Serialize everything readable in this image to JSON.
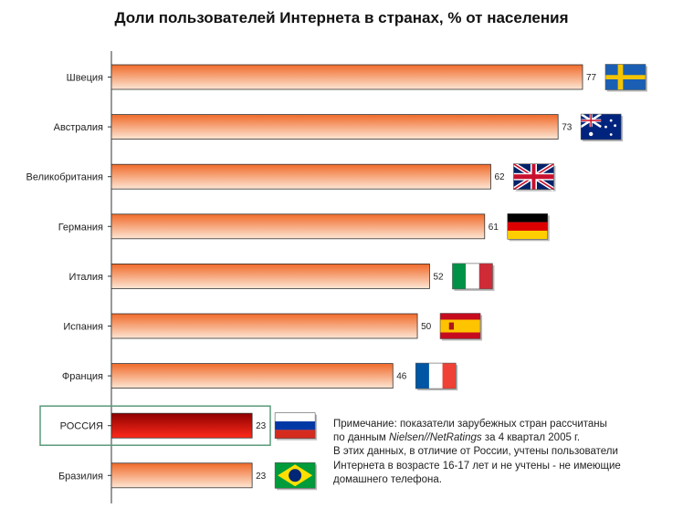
{
  "chart_data": {
    "type": "bar",
    "orientation": "horizontal",
    "title": "Доли пользователей Интернета в странах, % от населения",
    "categories": [
      "Швеция",
      "Австралия",
      "Великобритания",
      "Германия",
      "Италия",
      "Испания",
      "Франция",
      "РОССИЯ",
      "Бразилия"
    ],
    "values": [
      77,
      73,
      62,
      61,
      52,
      50,
      46,
      23,
      23
    ],
    "value_labels": [
      "77",
      "73",
      "62",
      "61",
      "52",
      "50",
      "46",
      "23",
      "23"
    ],
    "highlighted_category": "РОССИЯ",
    "flags": [
      "sweden-flag",
      "australia-flag",
      "uk-flag",
      "germany-flag",
      "italy-flag",
      "spain-flag",
      "france-flag",
      "russia-flag",
      "brazil-flag"
    ],
    "xlim": [
      0,
      77
    ],
    "grid": false,
    "legend": "none"
  },
  "colors": {
    "bar_dark": "#f06a2a",
    "bar_light": "#fde6d4",
    "highlight_dark": "#8e0000",
    "highlight_light": "#ff2a1a",
    "highlight_box": "#5a9a7a"
  },
  "note": {
    "line1": "Примечание: показатели зарубежных стран рассчитаны",
    "line2_pre": "по данным ",
    "line2_source": "Nielsen//NetRatings",
    "line2_post": " за 4 квартал 2005 г.",
    "line3": "В этих данных, в отличие от России, учтены пользователи",
    "line4": "Интернета в возрасте 16-17 лет и не учтены - не имеющие",
    "line5": "домашнего телефона."
  }
}
